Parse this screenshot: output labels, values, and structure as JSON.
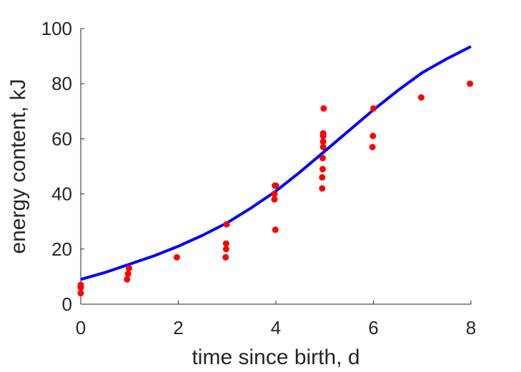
{
  "chart_data": {
    "type": "scatter",
    "title": "",
    "xlabel": "time since birth, d",
    "ylabel": "energy content, kJ",
    "xlim": [
      0,
      8
    ],
    "ylim": [
      0,
      100
    ],
    "xticks": [
      "0",
      "2",
      "4",
      "6",
      "8"
    ],
    "yticks": [
      "0",
      "20",
      "40",
      "60",
      "80",
      "100"
    ],
    "grid": false,
    "colors": {
      "points": "#ff0000",
      "fit": "#0000ff",
      "axes": "#262626"
    },
    "series": [
      {
        "kind": "scatter",
        "x": [
          0,
          0,
          0,
          0.95,
          0.97,
          0.99,
          1.97,
          2.97,
          2.98,
          2.98,
          2.99,
          3.97,
          3.97,
          3.98,
          3.99,
          4.0,
          4.95,
          4.95,
          4.96,
          4.96,
          4.97,
          4.97,
          4.97,
          4.97,
          4.98,
          5.98,
          5.99,
          6.0,
          6.98,
          7.98
        ],
        "y": [
          4,
          6,
          7,
          9,
          11,
          13,
          17,
          17,
          20,
          22,
          29,
          38,
          40,
          43,
          27,
          43,
          42,
          46,
          49,
          53,
          57,
          59,
          61,
          62,
          71,
          57,
          61,
          71,
          75,
          80
        ]
      },
      {
        "kind": "line",
        "x": [
          0,
          0.5,
          1,
          1.5,
          2,
          2.5,
          3,
          3.5,
          4,
          4.5,
          5,
          5.5,
          6,
          6.5,
          7,
          7.5,
          8
        ],
        "y": [
          9,
          11.5,
          14.5,
          17.5,
          21,
          25,
          29.5,
          35,
          41,
          48,
          55.5,
          63,
          70.5,
          77.5,
          84,
          89,
          93.5
        ]
      }
    ]
  }
}
